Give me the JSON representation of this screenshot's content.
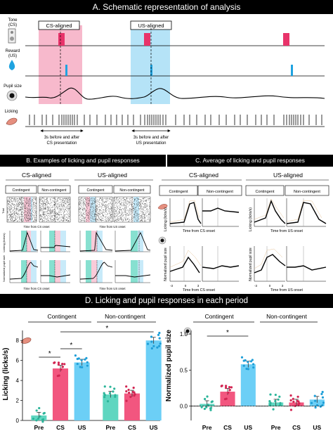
{
  "panelA": {
    "title": "A. Schematic representation of analysis",
    "labels": {
      "tone": "Tone",
      "tone_sub": "(CS)",
      "reward": "Reward",
      "reward_sub": "(US)",
      "pupil": "Pupil size",
      "licking": "Licking"
    },
    "cs_box": "CS-aligned",
    "us_box": "US-aligned",
    "cs_note_1": "3s before and after",
    "cs_note_2": "CS presentation",
    "us_note_1": "3s before and after",
    "us_note_2": "US presentation",
    "colors": {
      "cs": "#f7b9cc",
      "us": "#b5e3f7",
      "tone": "#e8336a",
      "reward": "#1fa3e0"
    }
  },
  "panelB": {
    "title": "B. Examples of licking and pupil responses",
    "cs": "CS-aligned",
    "us": "US-aligned",
    "contingent": "Contingent",
    "non_contingent": "Non-contingent",
    "axis_cs": "Time from CS onset",
    "axis_us": "Time from US onset",
    "trial": "Trial",
    "lick_y": "Licking (licks/s)",
    "pupil_y": "Normalized pupil size"
  },
  "panelC": {
    "title": "C. Average of licking and pupil responses",
    "cs": "CS-aligned",
    "us": "US-aligned",
    "contingent": "Contingent",
    "non_contingent": "Non-contingent",
    "axis_cs": "Time from CS onset",
    "axis_us": "Time from US onset",
    "lick_y": "Licking (licks/s)",
    "pupil_y": "Normalized pupil size",
    "ticks_small": [
      "-3",
      "0",
      "3"
    ]
  },
  "panelD": {
    "title": "D. Licking and pupil responses in each period",
    "left": {
      "contingent": "Contingent",
      "non_contingent": "Non-contingent",
      "ylabel": "Licking (licks/s)",
      "yticks": [
        "0",
        "2",
        "4",
        "6",
        "8"
      ],
      "categories": [
        "Pre",
        "CS",
        "US",
        "Pre",
        "CS",
        "US"
      ],
      "star": "*"
    },
    "right": {
      "contingent": "Contingent",
      "non_contingent": "Non-contingent",
      "ylabel": "Normalized pupil size",
      "yticks": [
        "0.0",
        "0.5",
        "1.0"
      ],
      "categories": [
        "Pre",
        "CS",
        "US",
        "Pre",
        "CS",
        "US"
      ],
      "star": "*"
    }
  },
  "chart_data": [
    {
      "type": "bar",
      "ylabel": "Licking (licks/s)",
      "categories": [
        "Pre",
        "CS",
        "US",
        "Pre",
        "CS",
        "US"
      ],
      "groups": [
        "Contingent",
        "Contingent",
        "Contingent",
        "Non-contingent",
        "Non-contingent",
        "Non-contingent"
      ],
      "values": [
        0.5,
        5.2,
        5.8,
        2.6,
        2.7,
        8.0
      ],
      "colors": [
        "#5fd6c0",
        "#f2567f",
        "#6ccff6",
        "#5fd6c0",
        "#f2567f",
        "#6ccff6"
      ],
      "ylim": [
        0,
        9
      ],
      "significance": [
        [
          "Pre",
          "CS"
        ],
        [
          "CS",
          "US"
        ],
        [
          "CS",
          "US (Non-contingent)"
        ]
      ]
    },
    {
      "type": "bar",
      "ylabel": "Normalized pupil size",
      "categories": [
        "Pre",
        "CS",
        "US",
        "Pre",
        "CS",
        "US"
      ],
      "groups": [
        "Contingent",
        "Contingent",
        "Contingent",
        "Non-contingent",
        "Non-contingent",
        "Non-contingent"
      ],
      "values": [
        0.03,
        0.2,
        0.58,
        0.05,
        0.05,
        0.09
      ],
      "colors": [
        "#5fd6c0",
        "#f2567f",
        "#6ccff6",
        "#5fd6c0",
        "#f2567f",
        "#6ccff6"
      ],
      "ylim": [
        -0.2,
        1.05
      ],
      "significance": [
        [
          "Pre",
          "US"
        ]
      ]
    }
  ]
}
